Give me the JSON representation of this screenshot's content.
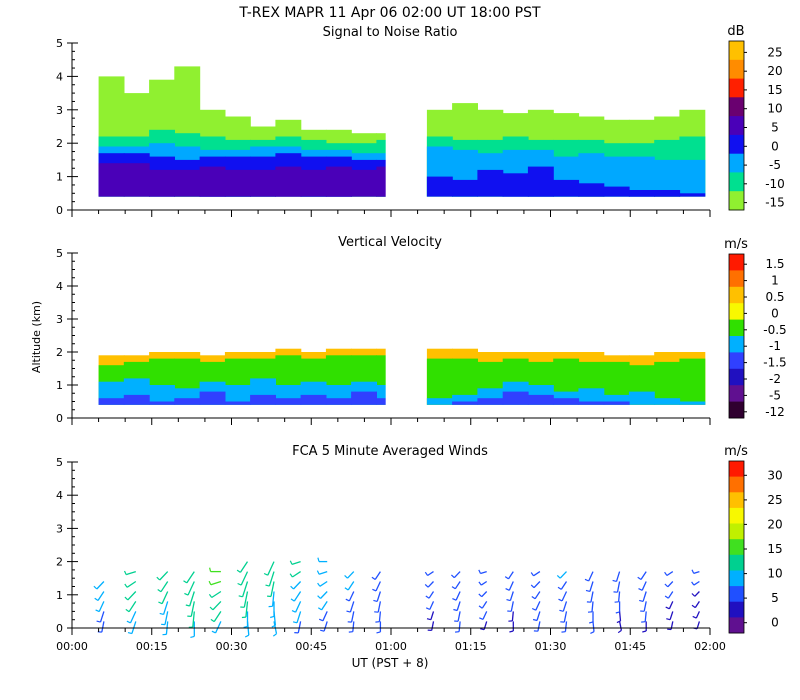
{
  "figure": {
    "title": "T-REX   MAPR 11 Apr 06   02:00 UT   18:00   PST",
    "ylabel": "Altitude (km)",
    "xlabel": "UT  (PST + 8)"
  },
  "chart_data": [
    {
      "type": "heatmap",
      "title": "Signal to Noise Ratio",
      "ylim": [
        0,
        5
      ],
      "xlim": [
        "00:00",
        "02:00"
      ],
      "yticks": [
        "0",
        "1",
        "2",
        "3",
        "4",
        "5"
      ],
      "xticks": [
        "00:00",
        "00:15",
        "00:30",
        "00:45",
        "01:00",
        "01:15",
        "01:30",
        "01:45",
        "02:00"
      ],
      "data_gaps": [
        [
          "00:59",
          "01:05"
        ]
      ],
      "colorbar": {
        "unit": "dB",
        "labels": [
          "25",
          "20",
          "15",
          "10",
          "5",
          "0",
          "-5",
          "-10",
          "-15"
        ],
        "colors": [
          "#ffc000",
          "#ff8c00",
          "#ff2000",
          "#6a0070",
          "#4a00b8",
          "#1010f0",
          "#00a8ff",
          "#00e090",
          "#90f030"
        ]
      },
      "layers": [
        {
          "label": "-15",
          "profile": [
            4.0,
            3.5,
            3.9,
            4.3,
            3.0,
            2.8,
            2.5,
            2.7,
            2.4,
            2.4,
            2.3,
            2.3,
            null,
            3.0,
            3.2,
            3.0,
            2.9,
            3.0,
            2.9,
            2.8,
            2.7,
            2.7,
            2.8,
            3.0
          ]
        },
        {
          "label": "-10",
          "profile": [
            2.2,
            2.2,
            2.4,
            2.3,
            2.2,
            2.1,
            2.1,
            2.2,
            2.1,
            2.0,
            2.0,
            2.1,
            null,
            2.2,
            2.1,
            2.1,
            2.2,
            2.1,
            2.1,
            2.1,
            2.0,
            2.0,
            2.1,
            2.2
          ]
        },
        {
          "label": "-5",
          "profile": [
            1.9,
            1.9,
            2.0,
            1.9,
            1.8,
            1.8,
            1.9,
            1.9,
            1.8,
            1.8,
            1.7,
            1.7,
            null,
            1.9,
            1.8,
            1.7,
            1.8,
            1.8,
            1.6,
            1.7,
            1.6,
            1.6,
            1.5,
            1.5
          ]
        },
        {
          "label": "0",
          "profile": [
            1.7,
            1.7,
            1.6,
            1.5,
            1.6,
            1.6,
            1.6,
            1.7,
            1.6,
            1.6,
            1.5,
            1.5,
            null,
            1.0,
            0.9,
            1.2,
            1.1,
            1.3,
            0.9,
            0.8,
            0.7,
            0.6,
            0.6,
            0.5
          ]
        },
        {
          "label": "5",
          "profile": [
            1.4,
            1.4,
            1.2,
            1.2,
            1.3,
            1.2,
            1.2,
            1.3,
            1.2,
            1.3,
            1.2,
            1.3,
            null,
            null,
            null,
            null,
            null,
            null,
            null,
            null,
            null,
            null,
            null,
            null
          ]
        }
      ]
    },
    {
      "type": "heatmap",
      "title": "Vertical Velocity",
      "ylim": [
        0,
        5
      ],
      "xlim": [
        "00:00",
        "02:00"
      ],
      "yticks": [
        "0",
        "1",
        "2",
        "3",
        "4",
        "5"
      ],
      "xticks": [
        "00:00",
        "00:15",
        "00:30",
        "00:45",
        "01:00",
        "01:15",
        "01:30",
        "01:45",
        "02:00"
      ],
      "data_gaps": [
        [
          "00:59",
          "01:05"
        ]
      ],
      "colorbar": {
        "unit": "m/s",
        "labels": [
          "1.5",
          "1",
          "0.5",
          "0",
          "-0.5",
          "-1",
          "-1.5",
          "-2",
          "-5",
          "-12"
        ],
        "colors": [
          "#ff1a00",
          "#ff7000",
          "#ffc000",
          "#f8f800",
          "#30e000",
          "#00b0ff",
          "#3040ff",
          "#2010c0",
          "#601090",
          "#300030"
        ]
      },
      "layers": [
        {
          "label": "0.5",
          "profile": [
            1.9,
            1.9,
            2.0,
            2.0,
            1.9,
            2.0,
            2.0,
            2.1,
            2.0,
            2.1,
            2.1,
            2.1,
            null,
            2.1,
            2.1,
            2.0,
            2.0,
            2.0,
            2.0,
            2.0,
            1.9,
            1.9,
            2.0,
            2.0
          ]
        },
        {
          "label": "-0.5",
          "profile": [
            1.6,
            1.7,
            1.8,
            1.8,
            1.7,
            1.8,
            1.8,
            1.9,
            1.8,
            1.9,
            1.9,
            1.9,
            null,
            1.8,
            1.8,
            1.7,
            1.8,
            1.7,
            1.8,
            1.7,
            1.7,
            1.6,
            1.7,
            1.8
          ]
        },
        {
          "label": "-1",
          "profile": [
            1.1,
            1.2,
            1.0,
            0.9,
            1.1,
            1.0,
            1.2,
            1.0,
            1.1,
            1.0,
            1.1,
            1.0,
            null,
            0.6,
            0.7,
            0.9,
            1.1,
            1.0,
            0.8,
            0.9,
            0.7,
            0.8,
            0.6,
            0.5
          ]
        },
        {
          "label": "-1.5",
          "profile": [
            0.6,
            0.7,
            0.5,
            0.6,
            0.8,
            0.5,
            0.7,
            0.6,
            0.7,
            0.6,
            0.8,
            0.6,
            null,
            0.4,
            0.5,
            0.6,
            0.8,
            0.7,
            0.6,
            0.5,
            0.5,
            0.4,
            0.4,
            0.4
          ]
        }
      ]
    },
    {
      "type": "scatter",
      "title": "FCA 5 Minute Averaged Winds",
      "ylim": [
        0,
        5
      ],
      "xlim": [
        "00:00",
        "02:00"
      ],
      "yticks": [
        "0",
        "1",
        "2",
        "3",
        "4",
        "5"
      ],
      "xticks": [
        "00:00",
        "00:15",
        "00:30",
        "00:45",
        "01:00",
        "01:15",
        "01:30",
        "01:45",
        "02:00"
      ],
      "colorbar": {
        "unit": "m/s",
        "labels": [
          "30",
          "25",
          "20",
          "15",
          "10",
          "5",
          "0"
        ],
        "colors": [
          "#ff1a00",
          "#ff7000",
          "#ffc000",
          "#f8f800",
          "#c0f000",
          "#40e020",
          "#00d090",
          "#00b0ff",
          "#2050ff",
          "#2010c0",
          "#601090"
        ]
      },
      "times_min": [
        6,
        12,
        18,
        23,
        28,
        33,
        38,
        43,
        48,
        53,
        58,
        68,
        73,
        78,
        83,
        88,
        93,
        98,
        103,
        108,
        113,
        118
      ],
      "alts_km": [
        0.2,
        0.5,
        0.8,
        1.1,
        1.4,
        1.7,
        2.0
      ],
      "speeds_ms": [
        [
          6,
          9,
          8,
          10,
          10,
          9,
          8,
          7,
          6,
          5,
          5,
          4,
          5,
          4,
          4,
          5,
          5,
          5,
          4,
          4,
          3,
          3
        ],
        [
          7,
          10,
          9,
          11,
          11,
          10,
          9,
          8,
          7,
          6,
          5,
          4,
          5,
          5,
          4,
          5,
          6,
          5,
          4,
          5,
          4,
          3
        ],
        [
          8,
          11,
          10,
          11,
          12,
          11,
          10,
          9,
          8,
          7,
          6,
          5,
          5,
          5,
          5,
          6,
          6,
          5,
          5,
          5,
          4,
          4
        ],
        [
          9,
          12,
          11,
          12,
          13,
          12,
          10,
          10,
          9,
          7,
          6,
          5,
          6,
          5,
          5,
          6,
          7,
          6,
          5,
          6,
          5,
          4
        ],
        [
          10,
          12,
          11,
          13,
          14,
          13,
          11,
          10,
          9,
          8,
          7,
          6,
          6,
          5,
          6,
          7,
          7,
          6,
          6,
          6,
          5,
          5
        ],
        [
          null,
          13,
          12,
          13,
          14,
          13,
          12,
          11,
          10,
          8,
          7,
          6,
          7,
          6,
          6,
          7,
          8,
          7,
          6,
          7,
          6,
          5
        ],
        [
          null,
          null,
          null,
          null,
          null,
          12,
          13,
          11,
          10,
          null,
          null,
          null,
          null,
          null,
          null,
          null,
          null,
          null,
          null,
          null,
          null,
          null
        ]
      ],
      "directions_deg": [
        [
          200,
          210,
          190,
          180,
          220,
          170,
          160,
          200,
          210,
          190,
          180,
          200,
          190,
          210,
          180,
          200,
          190,
          170,
          160,
          180,
          200,
          210
        ],
        [
          210,
          220,
          200,
          190,
          230,
          180,
          170,
          210,
          220,
          200,
          190,
          210,
          200,
          220,
          190,
          210,
          200,
          180,
          170,
          190,
          210,
          220
        ],
        [
          220,
          230,
          210,
          200,
          240,
          190,
          180,
          220,
          230,
          210,
          200,
          220,
          210,
          230,
          200,
          220,
          210,
          190,
          180,
          200,
          220,
          230
        ],
        [
          230,
          240,
          220,
          210,
          250,
          200,
          190,
          230,
          240,
          220,
          210,
          230,
          220,
          240,
          210,
          230,
          220,
          200,
          190,
          210,
          230,
          240
        ],
        [
          240,
          250,
          230,
          220,
          260,
          210,
          200,
          240,
          250,
          230,
          220,
          240,
          230,
          250,
          220,
          240,
          230,
          210,
          200,
          220,
          240,
          250
        ],
        [
          null,
          260,
          240,
          230,
          270,
          220,
          210,
          250,
          260,
          240,
          230,
          250,
          240,
          260,
          230,
          250,
          240,
          220,
          210,
          230,
          250,
          260
        ],
        [
          null,
          null,
          null,
          null,
          null,
          230,
          220,
          260,
          270,
          null,
          null,
          null,
          null,
          null,
          null,
          null,
          null,
          null,
          null,
          null,
          null,
          null
        ]
      ]
    }
  ]
}
